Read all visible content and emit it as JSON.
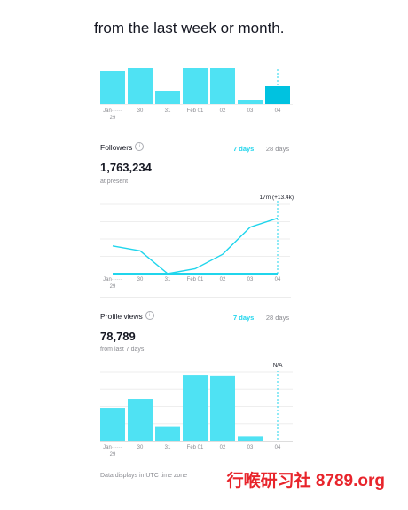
{
  "intro_text": "from the last week or month.",
  "days": [
    "Jan 29",
    "30",
    "31",
    "Feb 01",
    "02",
    "03",
    "04"
  ],
  "axis_x_labels": [
    "Jan······",
    "30",
    "31",
    "Feb 01",
    "02",
    "03",
    "04"
  ],
  "axis_x_sub": "29",
  "colors": {
    "accent": "#20d5ec",
    "bar": "#4fe2f3",
    "bar_highlight": "#00c2e0",
    "grid": "#eeeeee"
  },
  "followers": {
    "title": "Followers",
    "info_icon": "info-icon",
    "tab_7": "7 days",
    "tab_28": "28 days",
    "value": "1,763,234",
    "caption": "at present",
    "annotation": "17m (+13.4k)"
  },
  "profile_views": {
    "title": "Profile views",
    "info_icon": "info-icon",
    "tab_7": "7 days",
    "tab_28": "28 days",
    "value": "78,789",
    "caption": "from last 7 days",
    "annotation": "N/A"
  },
  "footer_note": "Data displays in UTC time zone",
  "watermark": "行喉研习社 8789.org",
  "chart_data": [
    {
      "type": "bar",
      "title": "",
      "categories": [
        "Jan 29",
        "30",
        "31",
        "Feb 01",
        "02",
        "03",
        "04"
      ],
      "values": [
        37,
        40,
        15,
        40,
        40,
        5,
        20
      ],
      "note": "top chart partially cropped; values relative"
    },
    {
      "type": "line",
      "title": "Followers",
      "categories": [
        "Jan 29",
        "30",
        "31",
        "Feb 01",
        "02",
        "03",
        "04"
      ],
      "series": [
        {
          "name": "",
          "values": [
            40,
            33,
            0,
            7,
            28,
            67,
            80
          ]
        },
        {
          "name": "",
          "values": [
            0,
            0,
            0,
            0,
            0,
            0,
            0
          ]
        }
      ],
      "annotation": "17m (+13.4k)",
      "ylim": [
        0,
        100
      ]
    },
    {
      "type": "bar",
      "title": "Profile views",
      "categories": [
        "Jan 29",
        "30",
        "31",
        "Feb 01",
        "02",
        "03",
        "04"
      ],
      "values": [
        48,
        61,
        20,
        96,
        95,
        6,
        0
      ],
      "annotation": "N/A",
      "ylim": [
        0,
        100
      ]
    }
  ]
}
